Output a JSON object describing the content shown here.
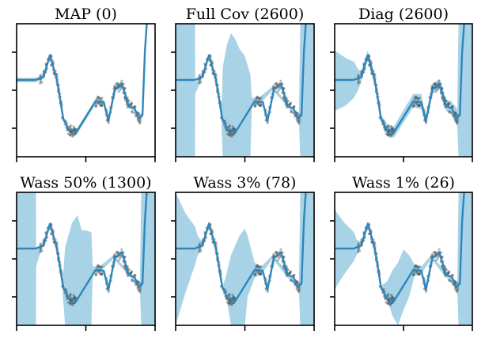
{
  "chart_data": {
    "type": "line",
    "layout": "2x3 grid of subplots",
    "shared": {
      "xlim": [
        0,
        1
      ],
      "ylim": [
        -1.75,
        1.75
      ],
      "x_ticks": [
        0,
        0.5,
        1
      ],
      "y_ticks": [
        -1,
        0,
        1
      ],
      "tick_labels_shown": false,
      "mean_color": "#2e86bb",
      "band_color": "#a8d3e6",
      "point_color": "#333333",
      "mean_curve": {
        "x": [
          0,
          0.137,
          0.194,
          0.24,
          0.291,
          0.337,
          0.377,
          0.429,
          0.571,
          0.629,
          0.663,
          0.709,
          0.76,
          0.811,
          0.851,
          0.886,
          0.909,
          0.926,
          0.94
        ],
        "y": [
          0.27,
          0.27,
          0.35,
          0.92,
          0.29,
          -0.75,
          -1.04,
          -1.12,
          -0.29,
          -0.31,
          -0.81,
          0.02,
          0.17,
          -0.42,
          -0.48,
          -0.75,
          -0.65,
          1.0,
          1.75
        ]
      },
      "observation_clusters": [
        {
          "x_range": [
            0.17,
            0.43
          ],
          "note": "dense noisy observations along the first peak and descent"
        },
        {
          "x_range": [
            0.57,
            0.9
          ],
          "note": "dense noisy observations along the second double-peak"
        }
      ]
    },
    "panels": [
      {
        "title": "MAP (0)",
        "band": {
          "x": [
            0,
            0.137,
            0.194,
            0.24,
            0.291,
            0.337,
            0.377,
            0.429,
            0.571,
            0.629,
            0.663,
            0.709,
            0.76,
            0.811,
            0.851,
            0.886,
            0.909,
            0.926,
            0.94
          ],
          "lower": [
            0.21,
            0.21,
            0.3,
            0.86,
            0.24,
            -0.8,
            -1.1,
            -1.2,
            -0.36,
            -0.37,
            -0.86,
            -0.04,
            0.11,
            -0.48,
            -0.54,
            -0.8,
            -0.7,
            0.94,
            1.75
          ],
          "upper": [
            0.33,
            0.33,
            0.4,
            0.97,
            0.34,
            -0.7,
            -0.98,
            -1.04,
            -0.22,
            -0.25,
            -0.76,
            0.08,
            0.23,
            -0.36,
            -0.42,
            -0.7,
            -0.6,
            1.06,
            1.75
          ]
        }
      },
      {
        "title": "Full Cov (2600)",
        "band": {
          "x": [
            0,
            0.14,
            0.141,
            0.17,
            0.19,
            0.24,
            0.29,
            0.33,
            0.34,
            0.37,
            0.4,
            0.43,
            0.46,
            0.5,
            0.54,
            0.55,
            0.6,
            0.7,
            0.8,
            0.89,
            0.9,
            1.0
          ],
          "lower": [
            -1.75,
            -1.75,
            -0.1,
            0.15,
            0.3,
            0.9,
            0.25,
            -0.8,
            -1.75,
            -1.75,
            -1.75,
            -1.75,
            -1.75,
            -1.75,
            -1.75,
            -0.4,
            -0.4,
            0.0,
            -0.4,
            -0.8,
            -1.75,
            -1.75
          ],
          "upper": [
            1.75,
            1.75,
            0.2,
            0.35,
            0.4,
            0.95,
            0.35,
            -0.7,
            0.6,
            1.2,
            1.5,
            1.35,
            1.1,
            0.9,
            0.4,
            -0.2,
            -0.2,
            0.1,
            -0.3,
            -0.7,
            1.75,
            1.75
          ]
        }
      },
      {
        "title": "Diag (2600)",
        "band": {
          "x": [
            0,
            0.08,
            0.14,
            0.17,
            0.19,
            0.24,
            0.29,
            0.34,
            0.38,
            0.43,
            0.57,
            0.63,
            0.66,
            0.71,
            0.76,
            0.81,
            0.85,
            0.89,
            0.9,
            1.0
          ],
          "lower": [
            -0.55,
            -0.4,
            -0.2,
            0.0,
            0.2,
            0.8,
            0.15,
            -0.85,
            -1.2,
            -1.25,
            -0.45,
            -0.5,
            -0.9,
            -0.1,
            0.05,
            -0.55,
            -0.65,
            -0.95,
            -1.75,
            -1.75
          ],
          "upper": [
            1.05,
            0.85,
            0.75,
            0.55,
            0.5,
            1.05,
            0.42,
            -0.65,
            -0.9,
            -0.95,
            -0.1,
            -0.1,
            -0.7,
            0.15,
            0.3,
            -0.25,
            -0.3,
            -0.5,
            1.75,
            1.75
          ]
        }
      },
      {
        "title": "Wass 50% (1300)",
        "band": {
          "x": [
            0,
            0.14,
            0.141,
            0.17,
            0.19,
            0.24,
            0.29,
            0.33,
            0.35,
            0.4,
            0.44,
            0.47,
            0.5,
            0.54,
            0.55,
            0.6,
            0.7,
            0.8,
            0.89,
            0.9,
            1.0
          ],
          "lower": [
            -1.75,
            -1.75,
            -0.2,
            0.15,
            0.3,
            0.9,
            0.25,
            -0.8,
            -1.75,
            -1.75,
            -1.75,
            -1.75,
            -1.75,
            -1.75,
            -0.35,
            -0.35,
            0.0,
            -0.4,
            -0.8,
            -1.75,
            -1.75
          ],
          "upper": [
            1.75,
            1.75,
            0.3,
            0.35,
            0.4,
            0.95,
            0.35,
            -0.7,
            0.3,
            0.95,
            1.15,
            0.75,
            0.75,
            0.7,
            -0.2,
            -0.2,
            0.1,
            -0.3,
            -0.7,
            1.75,
            1.75
          ]
        }
      },
      {
        "title": "Wass 3% (78)",
        "band": {
          "x": [
            0,
            0.07,
            0.14,
            0.16,
            0.19,
            0.24,
            0.29,
            0.34,
            0.36,
            0.4,
            0.46,
            0.5,
            0.52,
            0.57,
            0.62,
            0.7,
            0.8,
            0.89,
            0.9,
            1.0
          ],
          "lower": [
            -1.75,
            -0.9,
            -0.15,
            0.1,
            0.3,
            0.85,
            0.2,
            -0.8,
            -0.9,
            -1.75,
            -1.75,
            -1.75,
            -1.0,
            -0.5,
            -0.4,
            0.0,
            -0.45,
            -0.8,
            -1.75,
            -1.75
          ],
          "upper": [
            1.75,
            1.2,
            0.85,
            0.6,
            0.45,
            1.0,
            0.4,
            -0.7,
            -0.5,
            0.1,
            0.6,
            0.8,
            0.6,
            -0.1,
            -0.2,
            0.1,
            -0.3,
            -0.7,
            1.75,
            1.75
          ]
        }
      },
      {
        "title": "Wass 1% (26)",
        "band": {
          "x": [
            0,
            0.07,
            0.14,
            0.16,
            0.19,
            0.24,
            0.29,
            0.34,
            0.38,
            0.42,
            0.46,
            0.5,
            0.54,
            0.58,
            0.63,
            0.7,
            0.8,
            0.89,
            0.9,
            1.0
          ],
          "lower": [
            -0.8,
            -0.4,
            -0.05,
            0.1,
            0.3,
            0.85,
            0.2,
            -0.85,
            -1.05,
            -1.5,
            -1.75,
            -1.35,
            -1.0,
            -0.45,
            -0.4,
            0.0,
            -0.45,
            -0.8,
            -1.75,
            -1.75
          ],
          "upper": [
            1.3,
            0.95,
            0.7,
            0.5,
            0.45,
            1.0,
            0.4,
            -0.7,
            -0.6,
            -0.3,
            -0.1,
            0.25,
            0.1,
            -0.15,
            -0.2,
            0.1,
            -0.3,
            -0.7,
            1.75,
            1.75
          ]
        }
      }
    ]
  }
}
